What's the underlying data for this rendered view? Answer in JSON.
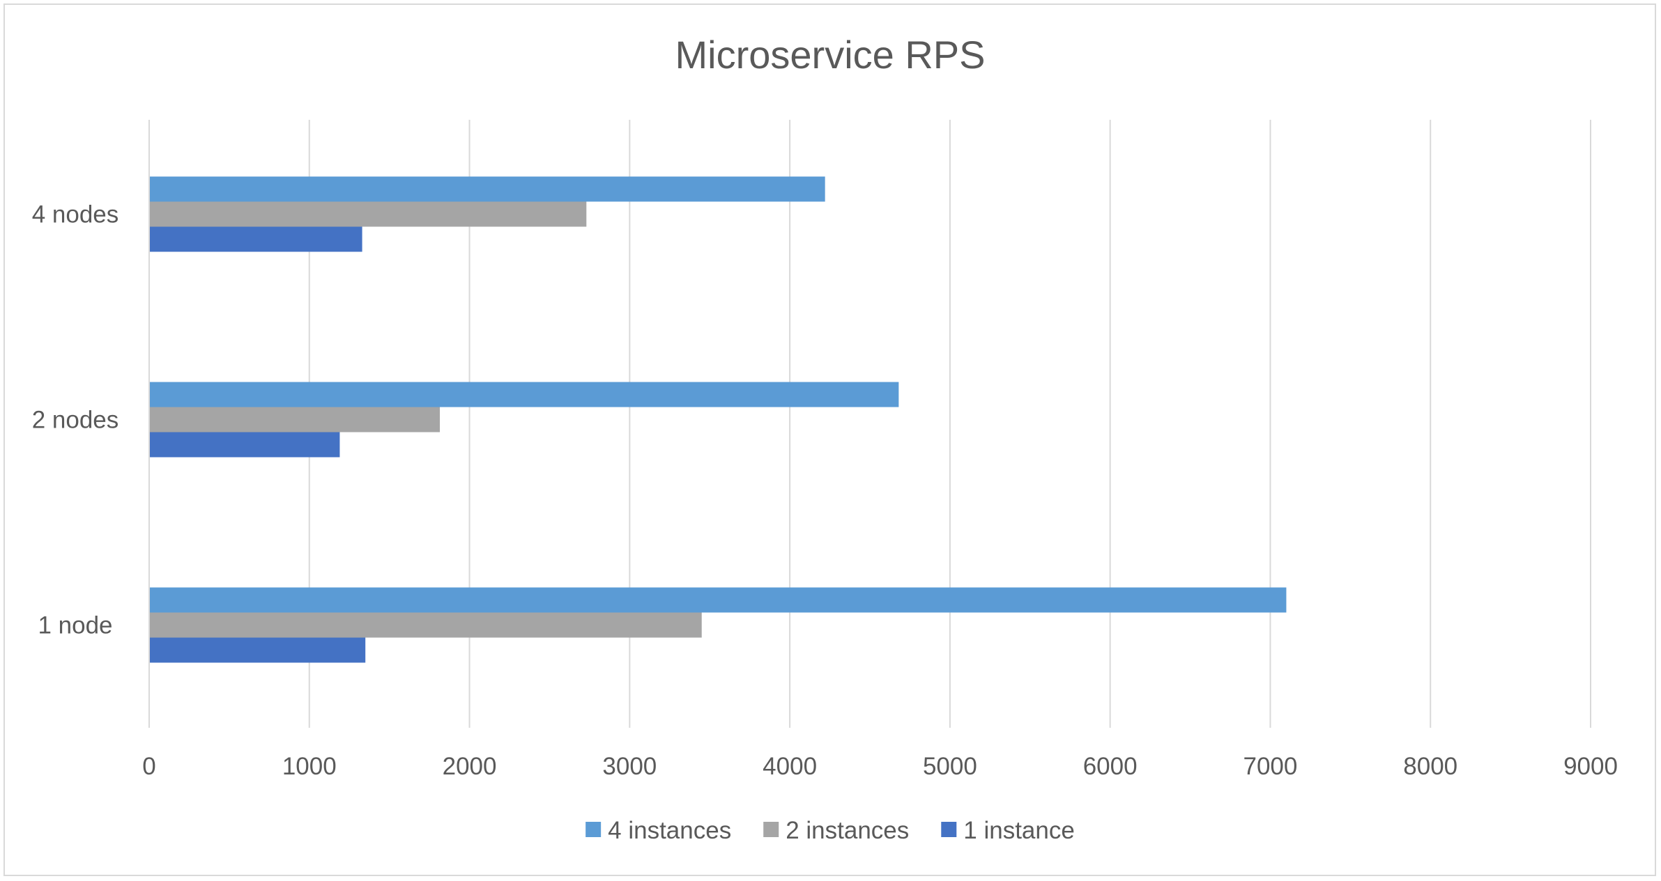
{
  "chart_data": {
    "type": "bar",
    "orientation": "horizontal",
    "title": "Microservice RPS",
    "xlabel": "",
    "ylabel": "",
    "categories": [
      "1 node",
      "2 nodes",
      "4 nodes"
    ],
    "series": [
      {
        "name": "4 instances",
        "color": "#5B9BD5",
        "values": [
          7100,
          4680,
          4220
        ]
      },
      {
        "name": "2 instances",
        "color": "#A5A5A5",
        "values": [
          3450,
          1815,
          2730
        ]
      },
      {
        "name": "1 instance",
        "color": "#4472C4",
        "values": [
          1350,
          1190,
          1330
        ]
      }
    ],
    "xlim": [
      0,
      9000
    ],
    "x_ticks": [
      "0",
      "1000",
      "2000",
      "3000",
      "4000",
      "5000",
      "6000",
      "7000",
      "8000",
      "9000"
    ],
    "grid": "vertical",
    "legend_position": "bottom"
  }
}
